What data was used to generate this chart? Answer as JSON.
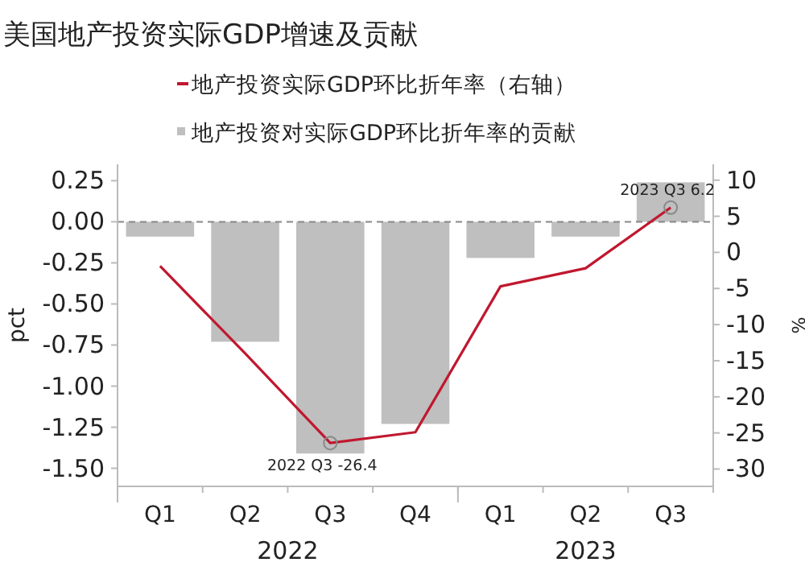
{
  "chart_data": {
    "type": "bar",
    "title": "美国地产投资实际GDP增速及贡献",
    "categories": [
      "Q1",
      "Q2",
      "Q3",
      "Q4",
      "Q1",
      "Q2",
      "Q3"
    ],
    "series": [
      {
        "name": "地产投资实际GDP环比折年率（右轴）",
        "type": "line",
        "axis": "y2",
        "color": "#c0182f",
        "values": [
          -1.9,
          -14,
          -26.4,
          -24.9,
          -4.7,
          -2.2,
          6.2
        ]
      },
      {
        "name": "地产投资对实际GDP环比折年率的贡献",
        "color": "#bfbfbf",
        "values": [
          -0.09,
          -0.73,
          -1.41,
          -1.23,
          -0.22,
          -0.09,
          0.24
        ]
      }
    ],
    "ylim": [
      -1.61,
      0.35
    ],
    "yticks": [
      0.25,
      {
        "value": 0,
        "label": "0.00"
      },
      -0.25,
      {
        "value": -0.5,
        "label": "-0.50"
      },
      -0.75,
      {
        "value": -1,
        "label": "-1.00"
      },
      -1.25,
      {
        "value": -1.5,
        "label": "-1.50"
      }
    ],
    "y2lim": [
      -32.4,
      12.2
    ],
    "y2ticks": [
      10,
      5,
      0,
      -5,
      -10,
      -15,
      -20,
      -25,
      -30
    ],
    "ylabel": "pct",
    "y2label": "%",
    "ref_lines": [
      {
        "axis": "y",
        "value": 0,
        "color": "#888888",
        "line_style": "dashed"
      }
    ],
    "annotations": [
      "2022",
      "2023",
      "2022 Q3 -26.4",
      "2023 Q3 6.2"
    ],
    "legend": "top"
  }
}
